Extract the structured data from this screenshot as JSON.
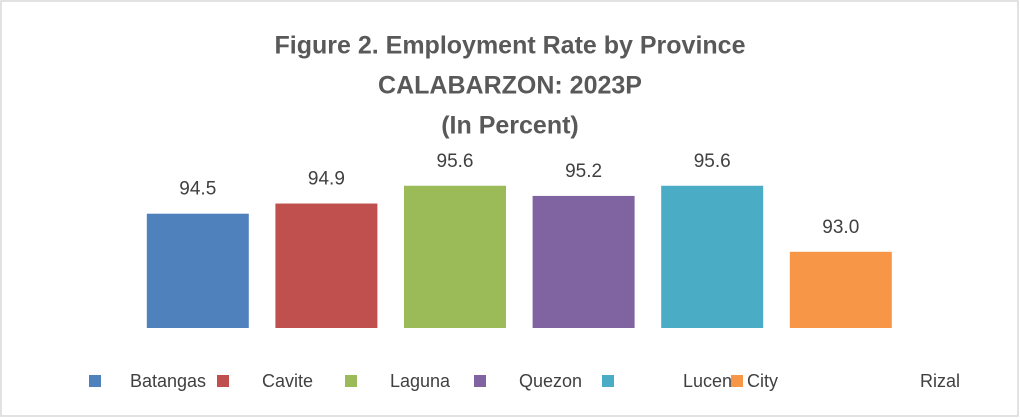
{
  "chart_data": {
    "type": "bar",
    "title": [
      "Figure 2. Employment Rate by Province",
      "CALABARZON: 2023P",
      "(In Percent)"
    ],
    "categories": [
      "Batangas",
      "Cavite",
      "Laguna",
      "Quezon",
      "Lucena City",
      "Rizal"
    ],
    "values": [
      94.5,
      94.9,
      95.6,
      95.2,
      95.6,
      93.0
    ],
    "value_labels": [
      "94.5",
      "94.9",
      "95.6",
      "95.2",
      "95.6",
      "93.0"
    ],
    "colors": [
      "#4f81bd",
      "#c0504d",
      "#9bbb59",
      "#8064a2",
      "#4bacc6",
      "#f79646"
    ],
    "ylim": [
      90,
      96
    ],
    "legend": "bottom"
  }
}
